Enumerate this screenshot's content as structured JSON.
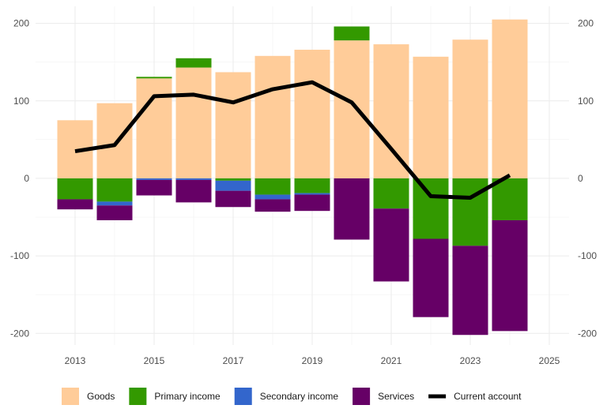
{
  "chart_data": {
    "type": "bar",
    "stacked": true,
    "diverging": true,
    "title": "",
    "xlabel": "",
    "ylabel": "",
    "x": [
      2013,
      2014,
      2015,
      2016,
      2017,
      2018,
      2019,
      2020,
      2021,
      2022,
      2023,
      2024
    ],
    "xlim": [
      2012,
      2025.5
    ],
    "xticks": [
      2013,
      2015,
      2017,
      2019,
      2021,
      2023,
      2025
    ],
    "ylim": [
      -215,
      222
    ],
    "yticks": [
      -200,
      -100,
      0,
      100,
      200
    ],
    "secondary_y_axis": "mirrored",
    "grid": true,
    "legend_position": "bottom",
    "series": [
      {
        "name": "Goods",
        "color": "#ffcc99",
        "values": [
          75,
          97,
          129,
          143,
          137,
          158,
          166,
          178,
          173,
          157,
          179,
          205
        ]
      },
      {
        "name": "Primary income",
        "color": "#339900",
        "values": [
          -27,
          -30,
          2,
          12,
          -3,
          -21,
          -19,
          18,
          -39,
          -78,
          -87,
          -54
        ]
      },
      {
        "name": "Secondary income",
        "color": "#3366cc",
        "values": [
          0,
          -5,
          -2,
          -2,
          -13,
          -6,
          -2,
          0,
          0,
          0,
          0,
          0
        ]
      },
      {
        "name": "Services",
        "color": "#660066",
        "values": [
          -13,
          -19,
          -20,
          -29,
          -21,
          -16,
          -21,
          -79,
          -94,
          -101,
          -115,
          -143
        ]
      }
    ],
    "line_series": {
      "name": "Current account",
      "color": "#000000",
      "values": [
        35,
        43,
        106,
        108,
        98,
        115,
        124,
        98,
        38,
        -23,
        -25,
        4
      ]
    }
  }
}
